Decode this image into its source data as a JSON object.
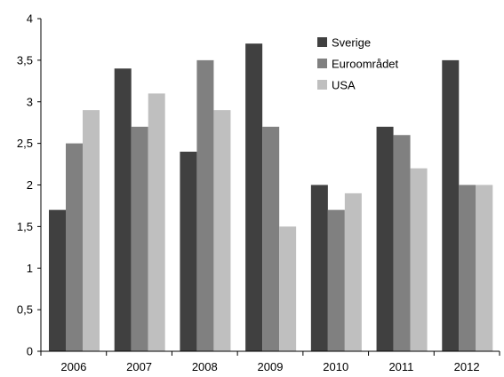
{
  "chart_data": {
    "type": "bar",
    "categories": [
      "2006",
      "2007",
      "2008",
      "2009",
      "2010",
      "2011",
      "2012"
    ],
    "series": [
      {
        "name": "Sverige",
        "color": "#404040",
        "values": [
          1.7,
          3.4,
          2.4,
          3.7,
          2.0,
          2.7,
          3.5
        ]
      },
      {
        "name": "Euroområdet",
        "color": "#808080",
        "values": [
          2.5,
          2.7,
          3.5,
          2.7,
          1.7,
          2.6,
          2.0
        ]
      },
      {
        "name": "USA",
        "color": "#bfbfbf",
        "values": [
          2.9,
          3.1,
          2.9,
          1.5,
          1.9,
          2.2,
          2.0
        ]
      }
    ],
    "yticks": [
      "0",
      "0,5",
      "1",
      "1,5",
      "2",
      "2,5",
      "3",
      "3,5",
      "4"
    ],
    "ylim": [
      0,
      4
    ],
    "title": "",
    "xlabel": "",
    "ylabel": "",
    "grid": false,
    "legend_position": "top-right"
  }
}
